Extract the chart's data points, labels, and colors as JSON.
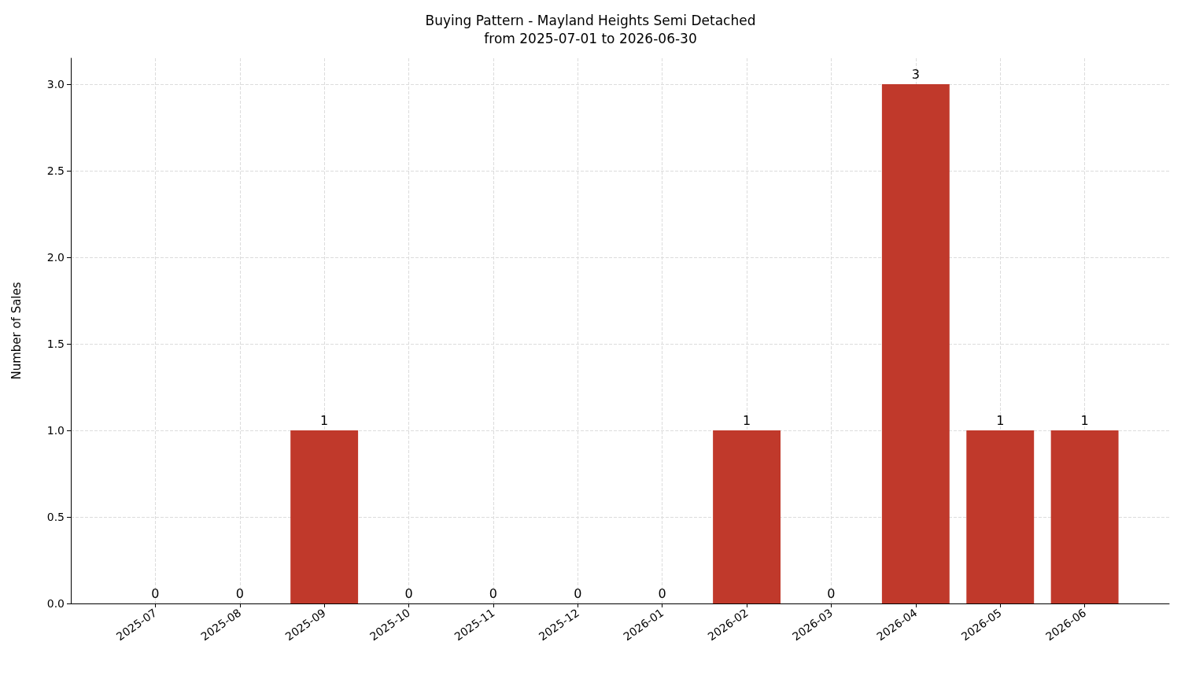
{
  "chart_data": {
    "type": "bar",
    "title": "Buying Pattern - Mayland Heights Semi Detached",
    "subtitle": "from 2025-07-01 to 2026-06-30",
    "ylabel": "Number of Sales",
    "categories": [
      "2025-07",
      "2025-08",
      "2025-09",
      "2025-10",
      "2025-11",
      "2025-12",
      "2026-01",
      "2026-02",
      "2026-03",
      "2026-04",
      "2026-05",
      "2026-06"
    ],
    "values": [
      0,
      0,
      1,
      0,
      0,
      0,
      0,
      1,
      0,
      3,
      1,
      1
    ],
    "color": "#c0392b",
    "ylim": [
      0,
      3.15
    ],
    "yticks": [
      {
        "value": 0,
        "label": "0.0"
      },
      {
        "value": 0.5,
        "label": "0.5"
      },
      {
        "value": 1,
        "label": "1.0"
      },
      {
        "value": 1.5,
        "label": "1.5"
      },
      {
        "value": 2,
        "label": "2.0"
      },
      {
        "value": 2.5,
        "label": "2.5"
      },
      {
        "value": 3,
        "label": "3.0"
      }
    ],
    "grid": true,
    "data_labels": true
  }
}
